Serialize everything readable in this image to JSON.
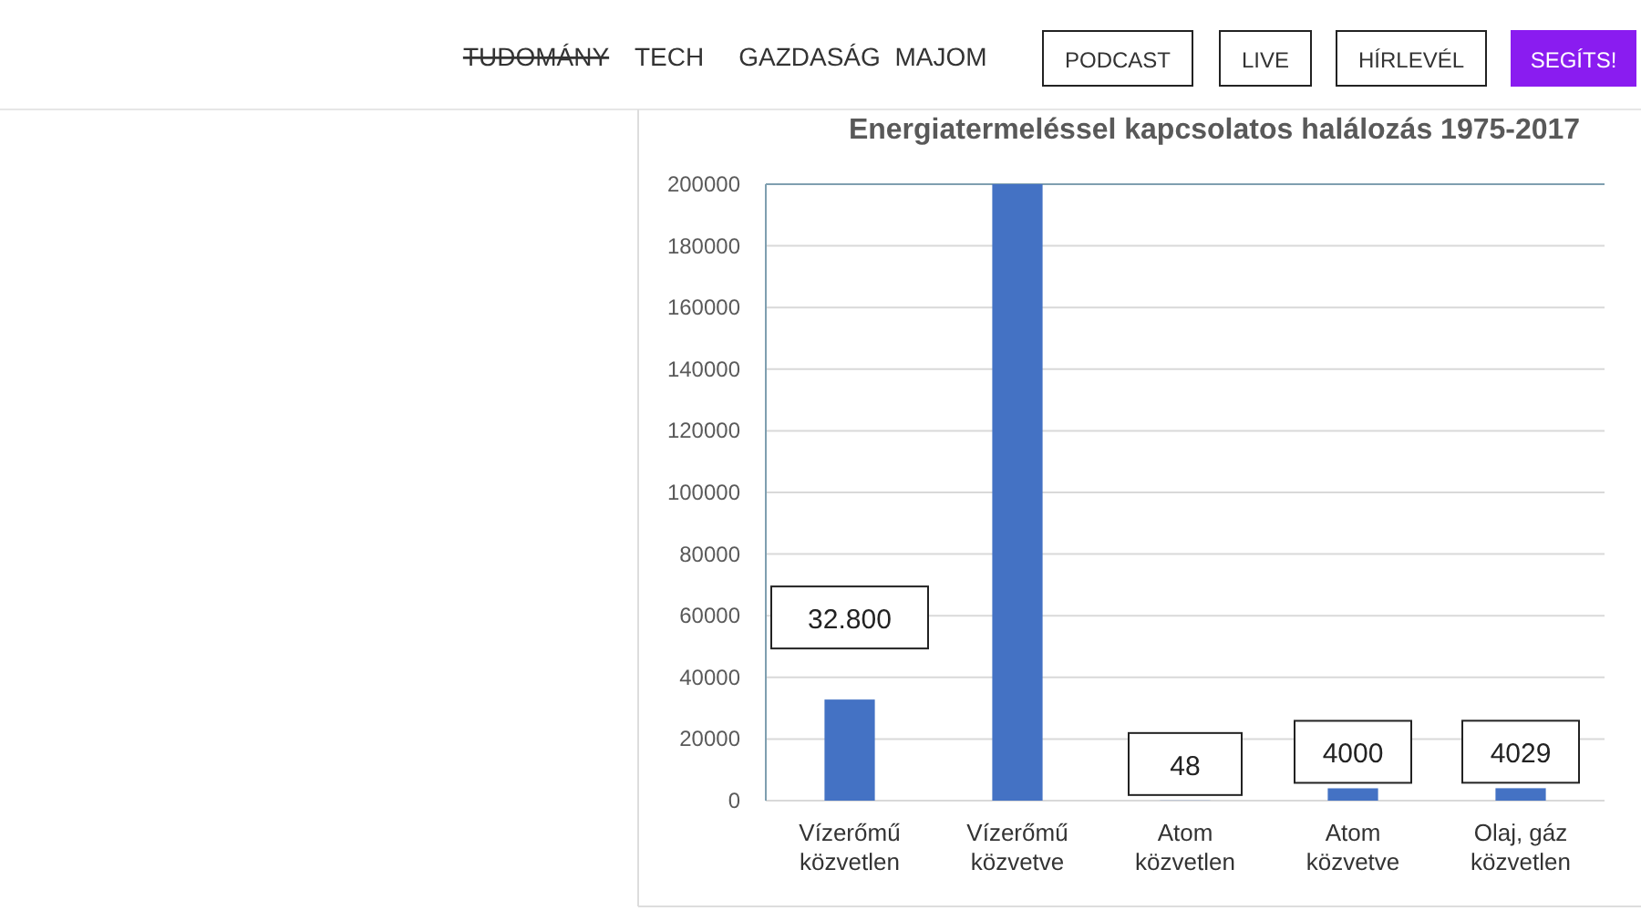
{
  "chart_data": {
    "type": "bar",
    "title": "Energiatermeléssel kapcsolatos halálozás 1975-2017",
    "categories": [
      "Vízerőmű\nközvetlen",
      "Vízerőmű\nközvetve",
      "Atom\nközvetlen",
      "Atom\nközvetve",
      "Olaj, gáz\nközvetlen"
    ],
    "values": [
      32800,
      200000,
      48,
      4000,
      4029
    ],
    "value_labels": [
      "32.800",
      null,
      "48",
      "4000",
      "4029"
    ],
    "color": "#4472c4",
    "ylim": [
      0,
      200000
    ],
    "yticks": [
      0,
      20000,
      40000,
      60000,
      80000,
      100000,
      120000,
      140000,
      160000,
      180000,
      200000
    ],
    "grid": "y",
    "annotations": [
      "TUDOMÁNY",
      "TECH",
      "GAZDASÁG",
      "MAJOM",
      "PODCAST",
      "LIVE",
      "HÍRLEVÉL",
      "SEGÍTS!"
    ]
  }
}
